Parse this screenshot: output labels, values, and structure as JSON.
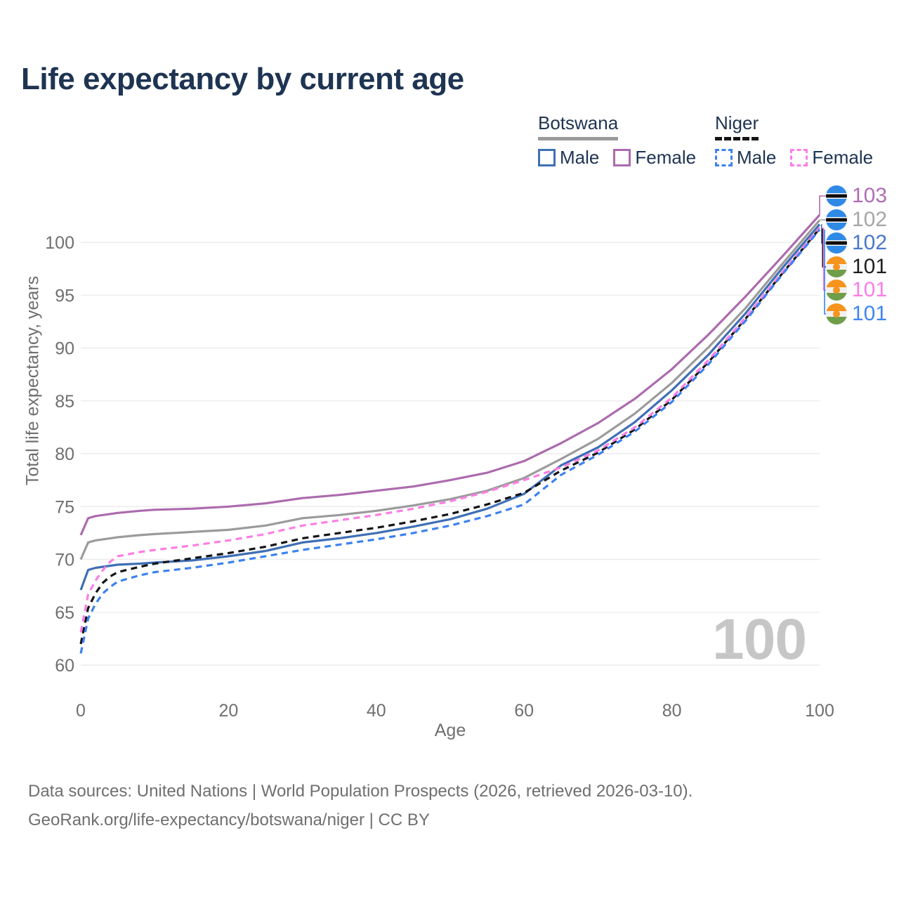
{
  "title": "Life expectancy by current age",
  "watermark": "100",
  "footer": {
    "line1": "Data sources: United Nations | World Population Prospects (2026, retrieved 2026-03-10).",
    "line2": "GeoRank.org/life-expectancy/botswana/niger | CC BY"
  },
  "legend": {
    "groups": [
      {
        "label": "Botswana",
        "underline_style": "solid",
        "underline_color": "#9a9a9a",
        "items": [
          {
            "label": "Male",
            "color": "#3f6fb5",
            "dashed": false
          },
          {
            "label": "Female",
            "color": "#ac6bae",
            "dashed": false
          }
        ]
      },
      {
        "label": "Niger",
        "underline_style": "dashed",
        "underline_color": "#141414",
        "items": [
          {
            "label": "Male",
            "color": "#3c82ef",
            "dashed": true
          },
          {
            "label": "Female",
            "color": "#fc7ee4",
            "dashed": true
          }
        ]
      }
    ]
  },
  "css_vars": {
    "title-color": "#1e3452",
    "legend-text": "#1e3452",
    "axis-text": "#6f6f6f",
    "footer-text": "#6f6f6f",
    "grid": "#ececec",
    "watermark": "#c6c6c6",
    "bots-underline": "#9a9a9a",
    "niger-underline": "#141414",
    "bw-blue": "#2f8ae6",
    "bw-black": "#0c0c0c",
    "ng-orange": "#f7941e",
    "ng-white": "#f1f1ef",
    "ng-green": "#6f9e4a"
  },
  "chart_data": {
    "type": "line",
    "title": "Life expectancy by current age",
    "xlabel": "Age",
    "ylabel": "Total life expectancy, years",
    "xlim": [
      0,
      100
    ],
    "ylim": [
      60,
      100
    ],
    "xticks": [
      0,
      20,
      40,
      60,
      80,
      100
    ],
    "yticks": [
      60,
      65,
      70,
      75,
      80,
      85,
      90,
      95,
      100
    ],
    "grid": "horizontal-only",
    "legend_position": "top-right",
    "x": [
      0,
      1,
      2,
      3,
      4,
      5,
      8,
      10,
      15,
      20,
      25,
      30,
      35,
      40,
      45,
      50,
      55,
      60,
      65,
      70,
      75,
      80,
      85,
      90,
      95,
      100
    ],
    "series": [
      {
        "id": "botswana-female",
        "name": "Botswana Female",
        "color": "#ac6bae",
        "dash": "solid",
        "end_label": "103",
        "values": [
          72.3,
          73.9,
          74.1,
          74.2,
          74.3,
          74.4,
          74.6,
          74.7,
          74.8,
          75.0,
          75.3,
          75.8,
          76.1,
          76.5,
          76.9,
          77.5,
          78.2,
          79.3,
          81.0,
          82.9,
          85.2,
          88.0,
          91.3,
          94.9,
          98.7,
          102.6
        ]
      },
      {
        "id": "botswana-both",
        "name": "Botswana (both sexes)",
        "color": "#9b9b9b",
        "dash": "solid",
        "end_label": "102",
        "values": [
          70.0,
          71.6,
          71.8,
          71.9,
          72.0,
          72.1,
          72.3,
          72.4,
          72.6,
          72.8,
          73.2,
          73.9,
          74.2,
          74.6,
          75.1,
          75.7,
          76.5,
          77.7,
          79.5,
          81.4,
          83.8,
          86.7,
          90.1,
          93.8,
          98.0,
          102.1
        ]
      },
      {
        "id": "botswana-male",
        "name": "Botswana Male",
        "color": "#3f6fb5",
        "dash": "solid",
        "end_label": "102",
        "values": [
          67.1,
          69.0,
          69.2,
          69.3,
          69.4,
          69.5,
          69.6,
          69.7,
          69.9,
          70.3,
          70.8,
          71.6,
          72.0,
          72.5,
          73.1,
          73.8,
          74.8,
          76.2,
          78.9,
          80.6,
          83.0,
          86.0,
          89.4,
          93.3,
          97.6,
          101.7
        ]
      },
      {
        "id": "niger-both",
        "name": "Niger (both sexes)",
        "color": "#141414",
        "dash": "dashed",
        "end_label": "101",
        "values": [
          62.0,
          65.4,
          66.8,
          67.8,
          68.4,
          68.8,
          69.3,
          69.6,
          70.1,
          70.6,
          71.2,
          72.0,
          72.5,
          73.0,
          73.6,
          74.3,
          75.2,
          76.3,
          78.4,
          80.1,
          82.3,
          85.1,
          88.7,
          92.8,
          97.1,
          101.3
        ]
      },
      {
        "id": "niger-female",
        "name": "Niger Female",
        "color": "#fc7ee4",
        "dash": "dashed",
        "end_label": "101",
        "values": [
          63.1,
          66.7,
          68.0,
          69.0,
          69.8,
          70.3,
          70.7,
          70.9,
          71.3,
          71.8,
          72.4,
          73.2,
          73.7,
          74.2,
          74.8,
          75.5,
          76.4,
          77.5,
          78.7,
          80.3,
          82.5,
          85.3,
          88.9,
          92.9,
          97.2,
          101.4
        ]
      },
      {
        "id": "niger-male",
        "name": "Niger Male",
        "color": "#3c82ef",
        "dash": "dashed",
        "end_label": "101",
        "values": [
          61.1,
          64.4,
          65.8,
          66.8,
          67.4,
          67.9,
          68.5,
          68.8,
          69.2,
          69.7,
          70.3,
          70.9,
          71.4,
          71.9,
          72.5,
          73.2,
          74.1,
          75.2,
          78.0,
          79.9,
          82.1,
          84.9,
          88.5,
          92.6,
          97.0,
          101.2
        ]
      }
    ],
    "end_labels": [
      {
        "text": "103",
        "color": "#b06cb3",
        "flag": "botswana"
      },
      {
        "text": "102",
        "color": "#a6a6a6",
        "flag": "botswana"
      },
      {
        "text": "102",
        "color": "#4b77c9",
        "flag": "botswana"
      },
      {
        "text": "101",
        "color": "#1f1f1f",
        "flag": "niger"
      },
      {
        "text": "101",
        "color": "#fb7de7",
        "flag": "niger"
      },
      {
        "text": "101",
        "color": "#3f86f2",
        "flag": "niger"
      }
    ]
  }
}
